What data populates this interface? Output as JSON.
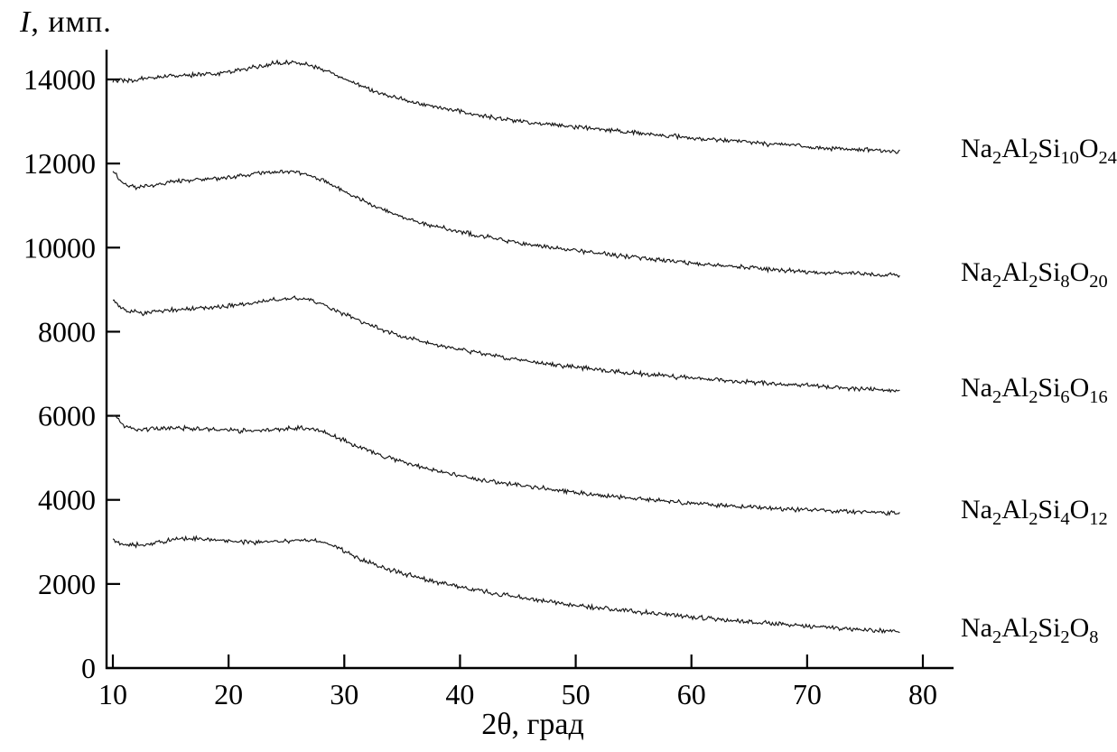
{
  "figure": {
    "ylabel_symbol": "I",
    "ylabel_suffix": ", имп.",
    "xlabel": "2θ, град"
  },
  "chart_data": {
    "type": "line",
    "title": "",
    "xlabel": "2θ, град",
    "ylabel": "I, имп.",
    "xlim": [
      10,
      83
    ],
    "ylim": [
      0,
      14600
    ],
    "x_ticks": [
      10,
      20,
      30,
      40,
      50,
      60,
      70,
      80
    ],
    "y_ticks": [
      0,
      2000,
      4000,
      6000,
      8000,
      10000,
      12000,
      14000
    ],
    "grid": false,
    "legend_position": "right-of-curve-ends",
    "line_color": "#141414",
    "noise_amplitude": 40,
    "series": [
      {
        "name": "Na2Al2Si10O24",
        "points": [
          [
            10,
            13980
          ],
          [
            11,
            13960
          ],
          [
            12.5,
            14020
          ],
          [
            14,
            14060
          ],
          [
            16,
            14100
          ],
          [
            18,
            14120
          ],
          [
            20,
            14180
          ],
          [
            22,
            14280
          ],
          [
            24,
            14380
          ],
          [
            25.5,
            14420
          ],
          [
            26.5,
            14380
          ],
          [
            28,
            14250
          ],
          [
            29.5,
            14080
          ],
          [
            31,
            13900
          ],
          [
            33,
            13680
          ],
          [
            35,
            13520
          ],
          [
            38,
            13350
          ],
          [
            41,
            13180
          ],
          [
            44,
            13050
          ],
          [
            47,
            12950
          ],
          [
            50,
            12870
          ],
          [
            54,
            12760
          ],
          [
            58,
            12660
          ],
          [
            62,
            12570
          ],
          [
            66,
            12480
          ],
          [
            70,
            12400
          ],
          [
            74,
            12330
          ],
          [
            78,
            12280
          ]
        ]
      },
      {
        "name": "Na2Al2Si8O20",
        "points": [
          [
            10,
            11800
          ],
          [
            10.8,
            11550
          ],
          [
            12,
            11420
          ],
          [
            13.5,
            11480
          ],
          [
            15,
            11560
          ],
          [
            17,
            11620
          ],
          [
            19,
            11650
          ],
          [
            21,
            11700
          ],
          [
            23,
            11780
          ],
          [
            24.5,
            11820
          ],
          [
            26,
            11800
          ],
          [
            27.5,
            11680
          ],
          [
            29,
            11480
          ],
          [
            31,
            11200
          ],
          [
            33,
            10950
          ],
          [
            35,
            10720
          ],
          [
            37.5,
            10530
          ],
          [
            40,
            10380
          ],
          [
            43,
            10220
          ],
          [
            46,
            10080
          ],
          [
            49,
            9960
          ],
          [
            52,
            9860
          ],
          [
            55,
            9770
          ],
          [
            58,
            9690
          ],
          [
            61,
            9610
          ],
          [
            64,
            9540
          ],
          [
            67,
            9480
          ],
          [
            70,
            9430
          ],
          [
            74,
            9380
          ],
          [
            78,
            9340
          ]
        ]
      },
      {
        "name": "Na2Al2Si6O16",
        "points": [
          [
            10,
            8780
          ],
          [
            11,
            8520
          ],
          [
            12.5,
            8440
          ],
          [
            14,
            8480
          ],
          [
            16,
            8540
          ],
          [
            18,
            8570
          ],
          [
            20,
            8610
          ],
          [
            22,
            8680
          ],
          [
            24,
            8760
          ],
          [
            25.5,
            8800
          ],
          [
            27,
            8760
          ],
          [
            28.5,
            8620
          ],
          [
            30,
            8420
          ],
          [
            32,
            8180
          ],
          [
            34,
            7980
          ],
          [
            36,
            7820
          ],
          [
            38.5,
            7660
          ],
          [
            41,
            7520
          ],
          [
            44,
            7380
          ],
          [
            47,
            7260
          ],
          [
            50,
            7160
          ],
          [
            53,
            7070
          ],
          [
            56,
            6990
          ],
          [
            59,
            6920
          ],
          [
            62,
            6860
          ],
          [
            65,
            6800
          ],
          [
            68,
            6750
          ],
          [
            71,
            6700
          ],
          [
            74,
            6650
          ],
          [
            78,
            6600
          ]
        ]
      },
      {
        "name": "Na2Al2Si4O12",
        "points": [
          [
            10,
            6050
          ],
          [
            10.8,
            5780
          ],
          [
            12,
            5660
          ],
          [
            13.5,
            5700
          ],
          [
            15,
            5720
          ],
          [
            17,
            5700
          ],
          [
            19,
            5670
          ],
          [
            21,
            5640
          ],
          [
            23,
            5650
          ],
          [
            25,
            5700
          ],
          [
            26.5,
            5720
          ],
          [
            28,
            5640
          ],
          [
            29.5,
            5480
          ],
          [
            31,
            5280
          ],
          [
            33,
            5080
          ],
          [
            35,
            4900
          ],
          [
            37,
            4760
          ],
          [
            39,
            4630
          ],
          [
            41,
            4520
          ],
          [
            44,
            4390
          ],
          [
            47,
            4280
          ],
          [
            50,
            4180
          ],
          [
            53,
            4090
          ],
          [
            56,
            4010
          ],
          [
            59,
            3940
          ],
          [
            62,
            3880
          ],
          [
            65,
            3830
          ],
          [
            68,
            3790
          ],
          [
            71,
            3750
          ],
          [
            74,
            3720
          ],
          [
            78,
            3690
          ]
        ]
      },
      {
        "name": "Na2Al2Si2O8",
        "points": [
          [
            10,
            3060
          ],
          [
            11,
            2920
          ],
          [
            12.5,
            2930
          ],
          [
            14,
            3000
          ],
          [
            15.5,
            3060
          ],
          [
            17,
            3090
          ],
          [
            18.5,
            3060
          ],
          [
            20,
            3010
          ],
          [
            21.5,
            2990
          ],
          [
            23,
            3000
          ],
          [
            24.5,
            3010
          ],
          [
            26,
            3040
          ],
          [
            27.5,
            3040
          ],
          [
            28.5,
            2960
          ],
          [
            30,
            2780
          ],
          [
            31.5,
            2580
          ],
          [
            33,
            2420
          ],
          [
            34.5,
            2290
          ],
          [
            36,
            2180
          ],
          [
            38,
            2040
          ],
          [
            40,
            1930
          ],
          [
            42,
            1830
          ],
          [
            44,
            1730
          ],
          [
            46,
            1650
          ],
          [
            48,
            1560
          ],
          [
            50,
            1490
          ],
          [
            53,
            1400
          ],
          [
            56,
            1320
          ],
          [
            59,
            1240
          ],
          [
            62,
            1170
          ],
          [
            65,
            1100
          ],
          [
            68,
            1040
          ],
          [
            71,
            980
          ],
          [
            74,
            930
          ],
          [
            78,
            870
          ]
        ]
      }
    ]
  }
}
